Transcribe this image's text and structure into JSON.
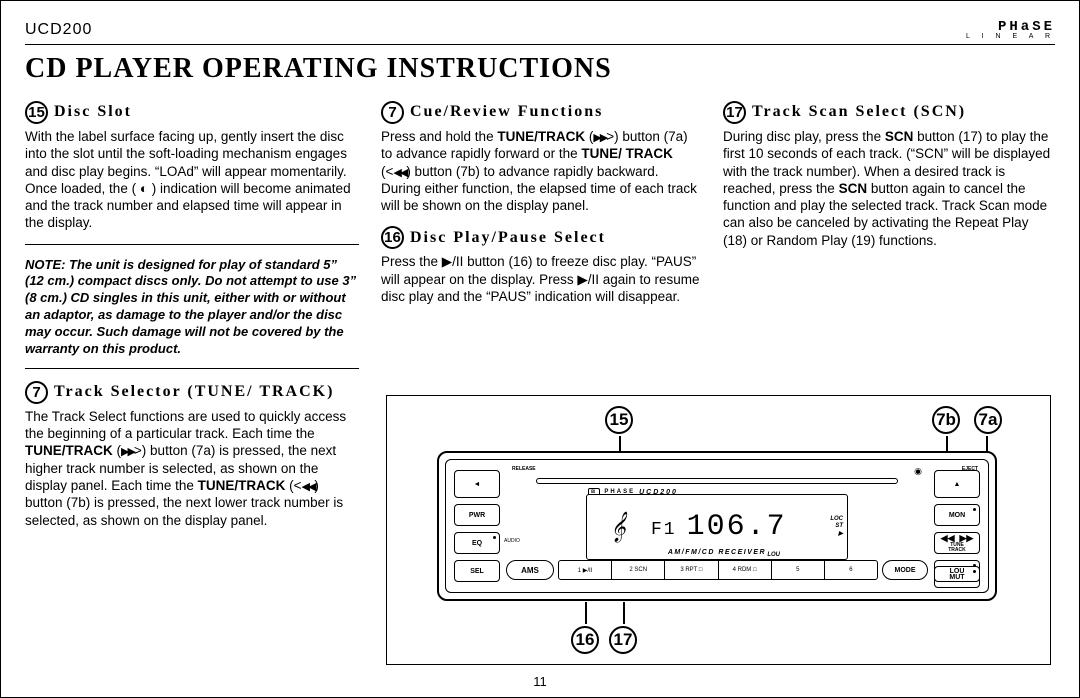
{
  "header": {
    "model": "UCD200",
    "brand_top": "PHaSE",
    "brand_bot": "L I N E A R"
  },
  "title": "Cd Player Operating Instructions",
  "page_number": "11",
  "sections": {
    "disc_slot": {
      "num": "15",
      "heading": "Disc Slot",
      "body": "With the label surface facing up, gently insert the disc into the slot until the soft-loading mechanism engages and disc play begins. “LOAd” will appear momentarily. Once loaded, the ( ◐ ) indication will become animated and the track number and elapsed time will appear in the display.",
      "note": "NOTE: The unit is designed for play of standard 5” (12 cm.) compact discs only. Do not attempt to use 3” (8 cm.) CD singles in this unit, either with or without an adaptor, as damage to the player and/or the disc may occur. Such damage will not be covered by the warranty on this product."
    },
    "track_sel": {
      "num": "7",
      "heading": "Track Selector (TUNE/ TRACK)",
      "body_html": "The Track Select functions are used to quickly access the beginning of a particular track. Each time the <b>TUNE/TRACK</b> (<span class=\"arrow\">▶▶</span>>) button (7a) is pressed, the next higher track number is selected, as shown on the display panel. Each time the <b>TUNE/TRACK</b> (<<span class=\"arrow\">◀◀</span>) button (7b) is pressed, the next lower track number is selected, as shown on the display panel."
    },
    "cue": {
      "num": "7",
      "heading": "Cue/Review Functions",
      "body_html": "Press and hold the <b>TUNE/TRACK</b> (<span class=\"arrow\">▶▶</span>>) button (7a) to advance rapidly forward or the <b>TUNE/ TRACK</b> (<<span class=\"arrow\">◀◀</span>) button (7b) to advance rapidly backward. During either function, the elapsed time of each track will be shown on the display panel."
    },
    "play_pause": {
      "num": "16",
      "heading": "Disc Play/Pause Select",
      "body_html": "Press the ▶/II button (16) to freeze disc play. “PAUS” will appear on the display. Press ▶/II again to resume disc play and the “PAUS” indication will disappear."
    },
    "scan": {
      "num": "17",
      "heading": "Track Scan Select (SCN)",
      "body_html": "During disc play, press the <b>SCN</b> button (17) to play the first 10 seconds of each track. (“SCN” will be displayed with the track number). When a desired track is reached, press the <b>SCN</b> button again to cancel the function and play the selected track. Track Scan mode can also be canceled by activating the Repeat Play (18) or Random Play (19) functions."
    }
  },
  "callouts": {
    "c15": "15",
    "c7b": "7b",
    "c7a": "7a",
    "c16": "16",
    "c17": "17"
  },
  "radio": {
    "release": "RELEASE",
    "eject": "EJECT",
    "cd_symbol": "◯",
    "logo_small": "UCD200",
    "side_left": [
      "PWR",
      "EQ",
      "SEL"
    ],
    "side_right": [
      "MON",
      "LOU",
      "MUT"
    ],
    "side_right_top_label": "DISP",
    "tune_label": "TUNE\nTRACK",
    "band_label": "BAND",
    "screen": {
      "band": "F1",
      "freq": "106.7",
      "flags_top": "LOC",
      "flags_mid": "ST",
      "flags_bot": "▶",
      "lou": "LOU"
    },
    "am_fm": "AM/FM/CD RECEIVER",
    "ams": "AMS",
    "presets": [
      "1 ▶/II",
      "2 SCN",
      "3 RPT □",
      "4 RDM □",
      "5",
      "6"
    ],
    "mode": "MODE",
    "audio_lab": "AUDIO"
  }
}
